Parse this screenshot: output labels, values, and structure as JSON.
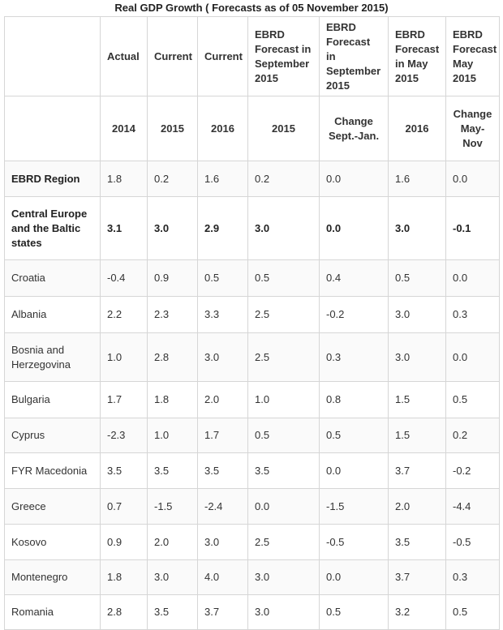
{
  "title": "Real GDP Growth ( Forecasts as of 05 November 2015)",
  "table": {
    "header_row_1": [
      "Actual",
      "Current",
      "Current",
      "EBRD Forecast in September 2015",
      "EBRD Forecast in September 2015",
      "EBRD Forecast in May 2015",
      "EBRD Forecast May 2015"
    ],
    "header_row_2": [
      "2014",
      "2015",
      "2016",
      "2015",
      "Change Sept.-Jan.",
      "2016",
      "Change May-Nov"
    ],
    "rows": [
      [
        "EBRD Region",
        "1.8",
        "0.2",
        "1.6",
        "0.2",
        "0.0",
        "1.6",
        "0.0"
      ],
      [
        "Central Europe and the Baltic states",
        "3.1",
        "3.0",
        "2.9",
        "3.0",
        "0.0",
        "3.0",
        "-0.1"
      ],
      [
        "Croatia",
        "-0.4",
        "0.9",
        "0.5",
        "0.5",
        "0.4",
        "0.5",
        "0.0"
      ],
      [
        "Albania",
        "2.2",
        "2.3",
        "3.3",
        "2.5",
        "-0.2",
        "3.0",
        "0.3"
      ],
      [
        "Bosnia and Herzegovina",
        "1.0",
        "2.8",
        "3.0",
        "2.5",
        "0.3",
        "3.0",
        "0.0"
      ],
      [
        "Bulgaria",
        "1.7",
        "1.8",
        "2.0",
        "1.0",
        "0.8",
        "1.5",
        "0.5"
      ],
      [
        "Cyprus",
        "-2.3",
        "1.0",
        "1.7",
        "0.5",
        "0.5",
        "1.5",
        "0.2"
      ],
      [
        "FYR Macedonia",
        "3.5",
        "3.5",
        "3.5",
        "3.5",
        "0.0",
        "3.7",
        "-0.2"
      ],
      [
        "Greece",
        "0.7",
        "-1.5",
        "-2.4",
        "0.0",
        "-1.5",
        "2.0",
        "-4.4"
      ],
      [
        "Kosovo",
        "0.9",
        "2.0",
        "3.0",
        "2.5",
        "-0.5",
        "3.5",
        "-0.5"
      ],
      [
        "Montenegro",
        "1.8",
        "3.0",
        "4.0",
        "3.0",
        "0.0",
        "3.7",
        "0.3"
      ],
      [
        "Romania",
        "2.8",
        "3.5",
        "3.7",
        "3.0",
        "0.5",
        "3.2",
        "0.5"
      ]
    ]
  }
}
